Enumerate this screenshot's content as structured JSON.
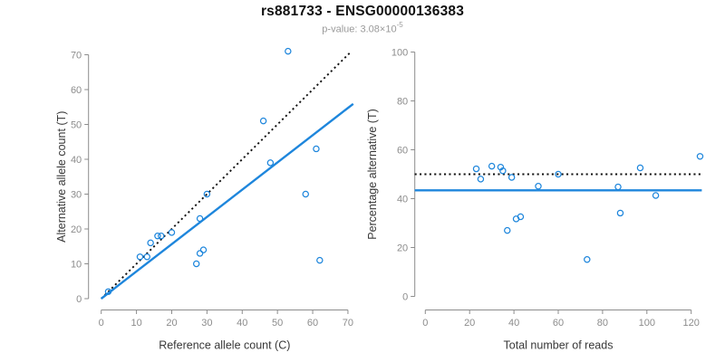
{
  "header": {
    "title": "rs881733 - ENSG00000136383",
    "p_value_prefix": "p-value: 3.08×10",
    "p_value_exponent": "-5"
  },
  "colors": {
    "accent_blue": "#1e86dc",
    "axis_gray": "#8c8c8c",
    "tick_label_gray": "#8c8c8c",
    "axis_title_dark": "#383838",
    "dotted_black": "#111111"
  },
  "chart_data": [
    {
      "type": "scatter",
      "name": "allele-count-scatter",
      "xlabel": "Reference allele count (C)",
      "ylabel": "Alternative allele count (T)",
      "xlim": [
        0,
        70
      ],
      "ylim": [
        0,
        70
      ],
      "xticks": [
        0,
        10,
        20,
        30,
        40,
        50,
        60,
        70
      ],
      "yticks": [
        0,
        10,
        20,
        30,
        40,
        50,
        60,
        70
      ],
      "grid": false,
      "points": [
        [
          2,
          2
        ],
        [
          11,
          12
        ],
        [
          13,
          12
        ],
        [
          14,
          16
        ],
        [
          16,
          18
        ],
        [
          17,
          18
        ],
        [
          20,
          19
        ],
        [
          27,
          10
        ],
        [
          28,
          13
        ],
        [
          29,
          14
        ],
        [
          28,
          23
        ],
        [
          30,
          30
        ],
        [
          46,
          51
        ],
        [
          48,
          39
        ],
        [
          53,
          71
        ],
        [
          58,
          30
        ],
        [
          61,
          43
        ],
        [
          62,
          11
        ]
      ],
      "lines": [
        {
          "label": "identity-line",
          "style": "dotted",
          "color": "black",
          "x1": 0,
          "y1": 0,
          "x2": 71,
          "y2": 71
        },
        {
          "label": "regression-line",
          "style": "solid",
          "color": "blue",
          "x1": 0,
          "y1": 0,
          "x2": 71.5,
          "y2": 55.9
        }
      ]
    },
    {
      "type": "scatter",
      "name": "percentage-vs-reads-scatter",
      "xlabel": "Total number of reads",
      "ylabel": "Percentage alternative (T)",
      "xlim": [
        0,
        120
      ],
      "ylim": [
        0,
        100
      ],
      "xticks": [
        0,
        20,
        40,
        60,
        80,
        100,
        120
      ],
      "yticks": [
        0,
        20,
        40,
        60,
        80,
        100
      ],
      "grid": false,
      "points": [
        [
          23,
          52.2
        ],
        [
          25,
          48
        ],
        [
          30,
          53.3
        ],
        [
          34,
          52.9
        ],
        [
          35,
          51.4
        ],
        [
          37,
          27
        ],
        [
          39,
          48.7
        ],
        [
          41,
          31.7
        ],
        [
          43,
          32.6
        ],
        [
          51,
          45.1
        ],
        [
          60,
          50
        ],
        [
          73,
          15.1
        ],
        [
          87,
          44.8
        ],
        [
          88,
          34.1
        ],
        [
          97,
          52.6
        ],
        [
          104,
          41.3
        ],
        [
          124,
          57.3
        ]
      ],
      "lines": [
        {
          "label": "expected-50-percent-line",
          "style": "dotted",
          "color": "black",
          "y": 50
        },
        {
          "label": "mean-percentage-line",
          "style": "solid",
          "color": "blue",
          "y": 43.4
        }
      ]
    }
  ]
}
